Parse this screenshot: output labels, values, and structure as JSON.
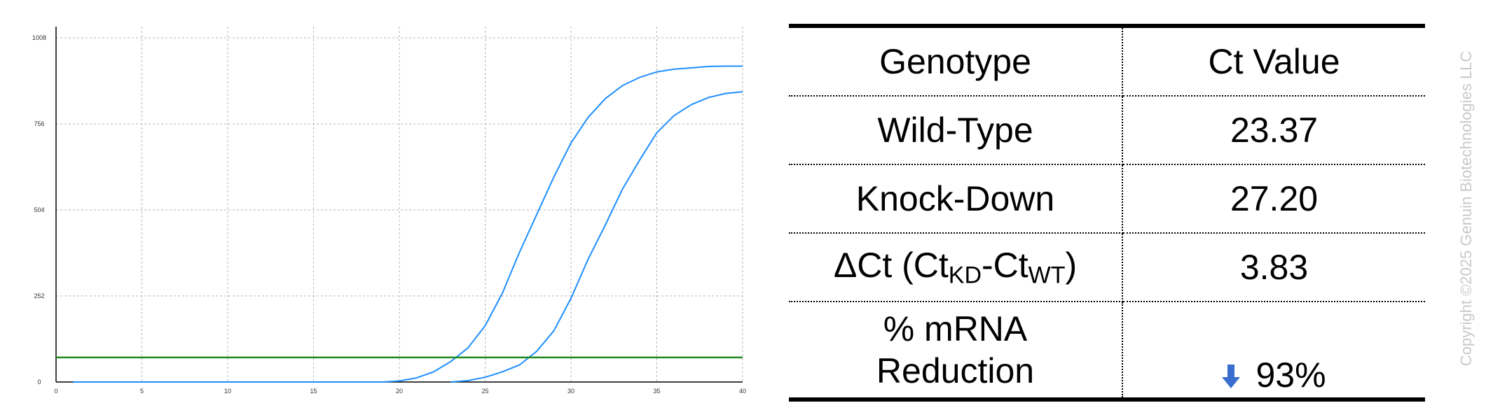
{
  "chart_data": {
    "type": "line",
    "xlim": [
      0,
      40
    ],
    "ylim": [
      0,
      1008
    ],
    "xticks": [
      0,
      5,
      10,
      15,
      20,
      25,
      30,
      35,
      40
    ],
    "yticks": [
      0,
      252,
      504,
      756,
      1008
    ],
    "grid": true,
    "threshold": 72,
    "series": [
      {
        "color": "#1f8fff",
        "x": [
          1,
          2,
          3,
          4,
          5,
          6,
          7,
          8,
          9,
          10,
          11,
          12,
          13,
          14,
          15,
          16,
          17,
          18,
          19,
          20,
          21,
          22,
          23,
          24,
          25,
          26,
          27,
          28,
          29,
          30,
          31,
          32,
          33,
          34,
          35,
          36,
          37,
          38,
          39,
          40
        ],
        "y": [
          0,
          0,
          0,
          0,
          0,
          0,
          0,
          0,
          0,
          0,
          0,
          0,
          0,
          0,
          0,
          0,
          0,
          0,
          0,
          3,
          12,
          30,
          60,
          100,
          165,
          260,
          380,
          490,
          600,
          700,
          775,
          830,
          868,
          892,
          908,
          916,
          920,
          924,
          925,
          925
        ]
      },
      {
        "color": "#1f8fff",
        "x": [
          23,
          24,
          25,
          26,
          27,
          28,
          29,
          30,
          31,
          32,
          33,
          34,
          35,
          36,
          37,
          38,
          39,
          40
        ],
        "y": [
          0,
          4,
          14,
          30,
          50,
          90,
          150,
          245,
          360,
          460,
          565,
          650,
          730,
          780,
          812,
          833,
          845,
          850
        ]
      }
    ],
    "threshold_color": "#1f8a1f"
  },
  "table": {
    "header": {
      "genotype": "Genotype",
      "ct": "Ct Value"
    },
    "rows": [
      {
        "label": "Wild-Type",
        "value": "23.37"
      },
      {
        "label": "Knock-Down",
        "value": "27.20"
      }
    ],
    "delta": {
      "prefix": "ΔCt (Ct",
      "sub1": "KD",
      "mid": "-Ct",
      "sub2": "WT",
      "suffix": ")",
      "value": "3.83"
    },
    "reduction": {
      "line1": "% mRNA",
      "line2": "Reduction",
      "value": "93%",
      "arrow_icon": "down-arrow-icon",
      "arrow_color": "#3a6fd0"
    }
  },
  "copyright": "Copyright ©2025 Genuin Biotechnologies LLC"
}
